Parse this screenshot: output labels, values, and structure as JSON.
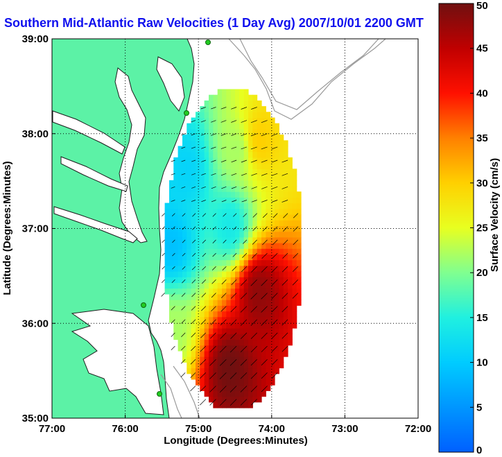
{
  "chart_data": {
    "type": "heatmap",
    "title": "Southern Mid-Atlantic Raw Velocities (1 Day Avg) 2007/10/01 2200 GMT",
    "xlabel": "Longitude (Degrees:Minutes)",
    "ylabel": "Latitude (Degrees:Minutes)",
    "x_ticks": [
      {
        "value": -77,
        "label": "77:00"
      },
      {
        "value": -76,
        "label": "76:00"
      },
      {
        "value": -75,
        "label": "75:00"
      },
      {
        "value": -74,
        "label": "74:00"
      },
      {
        "value": -73,
        "label": "73:00"
      },
      {
        "value": -72,
        "label": "72:00"
      }
    ],
    "y_ticks": [
      {
        "value": 35,
        "label": "35:00"
      },
      {
        "value": 36,
        "label": "36:00"
      },
      {
        "value": 37,
        "label": "37:00"
      },
      {
        "value": 38,
        "label": "38:00"
      },
      {
        "value": 39,
        "label": "39:00"
      }
    ],
    "xlim": [
      -77,
      -72
    ],
    "ylim": [
      35,
      39
    ],
    "grid": true,
    "colorbar": {
      "label": "Surface Velocity (cm/s)",
      "range": [
        0,
        50
      ],
      "ticks": [
        {
          "value": 0,
          "label": "0"
        },
        {
          "value": 5,
          "label": "5"
        },
        {
          "value": 10,
          "label": "10"
        },
        {
          "value": 15,
          "label": "15"
        },
        {
          "value": 20,
          "label": "20"
        },
        {
          "value": 25,
          "label": "25"
        },
        {
          "value": 30,
          "label": "30"
        },
        {
          "value": 35,
          "label": "35"
        },
        {
          "value": 40,
          "label": "40"
        },
        {
          "value": 45,
          "label": "45"
        },
        {
          "value": 50,
          "label": "50"
        }
      ]
    },
    "colors": {
      "land": "#5cf2a6",
      "title": "#1010ee",
      "contour": "#999999",
      "station": "#22cc22"
    },
    "field_regions": [
      {
        "lon": -75.2,
        "lat": 37.6,
        "speed": 11
      },
      {
        "lon": -75.4,
        "lat": 36.8,
        "speed": 9
      },
      {
        "lon": -74.6,
        "lat": 37.0,
        "speed": 14
      },
      {
        "lon": -74.5,
        "lat": 37.8,
        "speed": 22
      },
      {
        "lon": -74.2,
        "lat": 37.9,
        "speed": 30
      },
      {
        "lon": -74.2,
        "lat": 36.3,
        "speed": 48
      },
      {
        "lon": -74.6,
        "lat": 35.5,
        "speed": 50
      },
      {
        "lon": -75.4,
        "lat": 35.9,
        "speed": 22
      }
    ]
  }
}
